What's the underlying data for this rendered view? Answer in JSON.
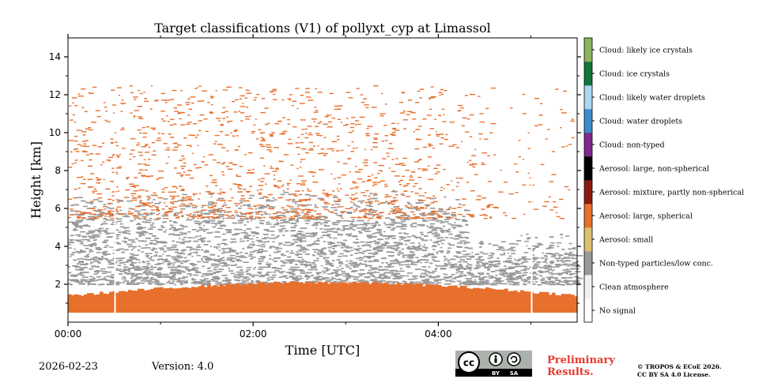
{
  "chart_data": {
    "type": "heatmap",
    "title": "Target classifications (V1) of pollyxt_cyp at Limassol",
    "xlabel": "Time [UTC]",
    "ylabel": "Height [km]",
    "x_range_hours": [
      0,
      5.5
    ],
    "ylim": [
      0,
      15
    ],
    "x_ticks": [
      {
        "value": 0,
        "label": "00:00"
      },
      {
        "value": 2,
        "label": "02:00"
      },
      {
        "value": 4,
        "label": "04:00"
      }
    ],
    "y_ticks": [
      {
        "value": 2,
        "label": "2"
      },
      {
        "value": 4,
        "label": "4"
      },
      {
        "value": 6,
        "label": "6"
      },
      {
        "value": 8,
        "label": "8"
      },
      {
        "value": 10,
        "label": "10"
      },
      {
        "value": 12,
        "label": "12"
      },
      {
        "value": 14,
        "label": "14"
      }
    ],
    "data_gaps_hours": [
      0.5,
      5.0
    ],
    "layers": [
      {
        "class": "Aerosol: large, spherical",
        "from_km": 0.5,
        "to_km": 2.0,
        "description": "dense near-surface layer"
      },
      {
        "class": "Non-typed particles/low conc.",
        "from_km": 2.0,
        "to_km": 7.0,
        "description": "scattered"
      },
      {
        "class": "Aerosol: large, spherical",
        "from_km": 5.5,
        "to_km": 12.5,
        "description": "sparse speckles"
      }
    ],
    "legend": [
      {
        "label": "No signal",
        "color": "#ffffff"
      },
      {
        "label": "Clean atmosphere",
        "color": "#f0f0f0"
      },
      {
        "label": "Non-typed particles/low conc.",
        "color": "#999999"
      },
      {
        "label": "Aerosol: small",
        "color": "#dcc06f"
      },
      {
        "label": "Aerosol: large, spherical",
        "color": "#e8702d"
      },
      {
        "label": "Aerosol: mixture, partly non-spherical",
        "color": "#8b1a0e"
      },
      {
        "label": "Aerosol: large, non-spherical",
        "color": "#000000"
      },
      {
        "label": "Cloud: non-typed",
        "color": "#7e2a8e"
      },
      {
        "label": "Cloud: water droplets",
        "color": "#3d8cc9"
      },
      {
        "label": "Cloud: likely water droplets",
        "color": "#acd6f2"
      },
      {
        "label": "Cloud: ice crystals",
        "color": "#13743a"
      },
      {
        "label": "Cloud: likely ice crystals",
        "color": "#8cb35e"
      }
    ]
  },
  "footer": {
    "date": "2026-02-23",
    "version": "Version: 4.0",
    "preliminary_line1": "Preliminary",
    "preliminary_line2": "Results.",
    "copyright_line1": "© TROPOS & ECoE 2026.",
    "copyright_line2": "CC BY SA 4.0 License."
  },
  "license_badge": {
    "cc": "cc",
    "by": "BY",
    "sa": "SA"
  }
}
